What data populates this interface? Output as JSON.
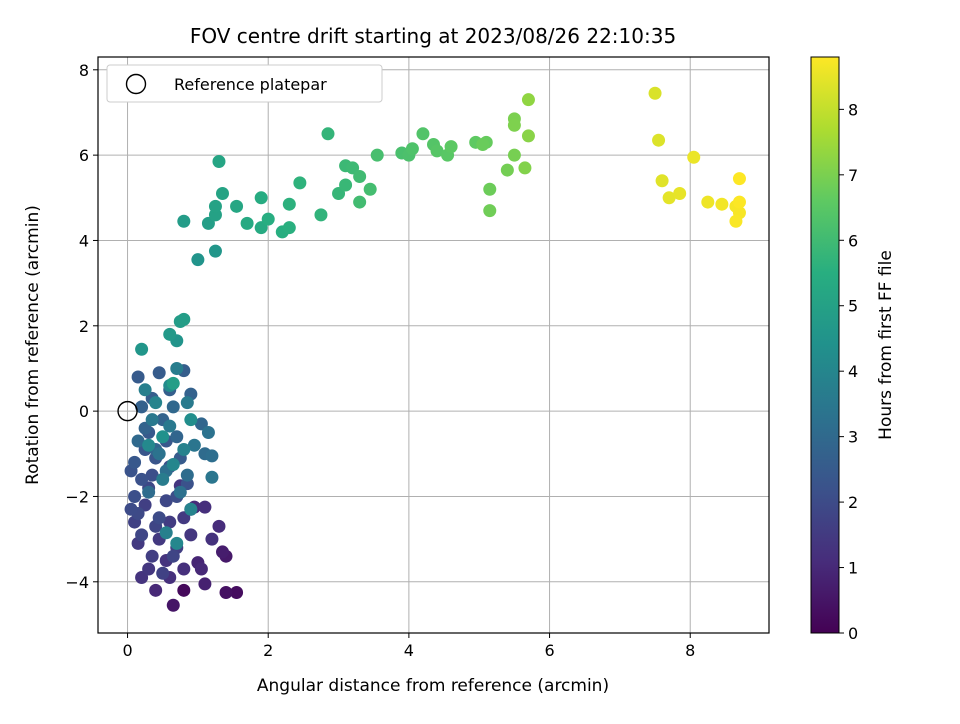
{
  "chart_data": {
    "type": "scatter",
    "title": "FOV centre drift starting at 2023/08/26 22:10:35",
    "xlabel": "Angular distance from reference (arcmin)",
    "ylabel": "Rotation from reference (arcmin)",
    "xlim": [
      -0.42,
      9.12
    ],
    "ylim": [
      -5.2,
      8.3
    ],
    "xticks": [
      "0",
      "2",
      "4",
      "6",
      "8"
    ],
    "yticks": [
      "−4",
      "−2",
      "0",
      "2",
      "4",
      "6",
      "8"
    ],
    "grid": true,
    "legend": {
      "placement": "top-left",
      "entries": [
        "Reference platepar"
      ]
    },
    "reference_point": {
      "x": 0,
      "y": 0
    },
    "colorbar": {
      "label": "Hours from first FF file",
      "range": [
        0,
        8.8
      ],
      "ticks": [
        "0",
        "1",
        "2",
        "3",
        "4",
        "5",
        "6",
        "7",
        "8"
      ],
      "colormap": "viridis"
    },
    "points": [
      {
        "x": 0.8,
        "y": -4.2,
        "t": 0.2
      },
      {
        "x": 1.55,
        "y": -4.25,
        "t": 0.3
      },
      {
        "x": 1.4,
        "y": -4.25,
        "t": 0.4
      },
      {
        "x": 0.65,
        "y": -4.55,
        "t": 0.5
      },
      {
        "x": 1.4,
        "y": -3.4,
        "t": 0.6
      },
      {
        "x": 1.35,
        "y": -3.3,
        "t": 0.7
      },
      {
        "x": 1.1,
        "y": -4.05,
        "t": 0.8
      },
      {
        "x": 1.0,
        "y": -3.55,
        "t": 0.9
      },
      {
        "x": 0.4,
        "y": -4.2,
        "t": 1.0
      },
      {
        "x": 1.05,
        "y": -3.7,
        "t": 1.0
      },
      {
        "x": 0.95,
        "y": -2.25,
        "t": 1.05
      },
      {
        "x": 1.3,
        "y": -2.7,
        "t": 1.1
      },
      {
        "x": 1.1,
        "y": -2.25,
        "t": 1.15
      },
      {
        "x": 0.8,
        "y": -3.7,
        "t": 1.2
      },
      {
        "x": 0.6,
        "y": -3.9,
        "t": 1.2
      },
      {
        "x": 1.2,
        "y": -3.0,
        "t": 1.25
      },
      {
        "x": 0.55,
        "y": -3.5,
        "t": 1.3
      },
      {
        "x": 0.2,
        "y": -3.9,
        "t": 1.3
      },
      {
        "x": 0.75,
        "y": -1.75,
        "t": 1.35
      },
      {
        "x": 0.9,
        "y": -2.9,
        "t": 1.4
      },
      {
        "x": 0.3,
        "y": -3.7,
        "t": 1.4
      },
      {
        "x": 0.45,
        "y": -3.0,
        "t": 1.45
      },
      {
        "x": 0.8,
        "y": -2.5,
        "t": 1.5
      },
      {
        "x": 0.15,
        "y": -3.1,
        "t": 1.5
      },
      {
        "x": 0.6,
        "y": -2.6,
        "t": 1.55
      },
      {
        "x": 0.35,
        "y": -3.4,
        "t": 1.6
      },
      {
        "x": 0.7,
        "y": -3.2,
        "t": 1.6
      },
      {
        "x": 0.25,
        "y": -2.2,
        "t": 1.65
      },
      {
        "x": 0.5,
        "y": -3.8,
        "t": 1.7
      },
      {
        "x": 0.1,
        "y": -2.6,
        "t": 1.7
      },
      {
        "x": 0.9,
        "y": -2.3,
        "t": 1.75
      },
      {
        "x": 0.4,
        "y": -2.7,
        "t": 1.8
      },
      {
        "x": 0.65,
        "y": -3.4,
        "t": 1.8
      },
      {
        "x": 0.2,
        "y": -2.9,
        "t": 1.85
      },
      {
        "x": 0.55,
        "y": -2.1,
        "t": 1.9
      },
      {
        "x": 0.3,
        "y": -1.8,
        "t": 1.9
      },
      {
        "x": 0.15,
        "y": -2.4,
        "t": 1.95
      },
      {
        "x": 0.05,
        "y": -2.3,
        "t": 2.0
      },
      {
        "x": 0.45,
        "y": -2.5,
        "t": 2.0
      },
      {
        "x": 0.7,
        "y": -2.0,
        "t": 2.05
      },
      {
        "x": 0.1,
        "y": -2.0,
        "t": 2.1
      },
      {
        "x": 0.35,
        "y": -1.5,
        "t": 2.1
      },
      {
        "x": 0.6,
        "y": -1.3,
        "t": 2.15
      },
      {
        "x": 0.2,
        "y": -1.6,
        "t": 2.2
      },
      {
        "x": 0.85,
        "y": -1.7,
        "t": 2.2
      },
      {
        "x": 0.05,
        "y": -1.4,
        "t": 2.25
      },
      {
        "x": 0.4,
        "y": -1.1,
        "t": 2.3
      },
      {
        "x": 0.25,
        "y": -0.9,
        "t": 2.35
      },
      {
        "x": 0.55,
        "y": -0.7,
        "t": 2.4
      },
      {
        "x": 0.1,
        "y": -1.2,
        "t": 2.4
      },
      {
        "x": 0.3,
        "y": -0.5,
        "t": 2.45
      },
      {
        "x": 0.75,
        "y": -1.1,
        "t": 2.5
      },
      {
        "x": 0.15,
        "y": 0.8,
        "t": 2.5
      },
      {
        "x": 0.45,
        "y": 0.9,
        "t": 2.55
      },
      {
        "x": 0.8,
        "y": 0.95,
        "t": 2.6
      },
      {
        "x": 0.35,
        "y": 0.3,
        "t": 2.6
      },
      {
        "x": 0.6,
        "y": 0.5,
        "t": 2.65
      },
      {
        "x": 0.2,
        "y": 0.1,
        "t": 2.7
      },
      {
        "x": 0.9,
        "y": 0.4,
        "t": 2.75
      },
      {
        "x": 0.5,
        "y": -0.2,
        "t": 2.8
      },
      {
        "x": 0.25,
        "y": -0.4,
        "t": 2.8
      },
      {
        "x": 0.7,
        "y": -0.6,
        "t": 2.85
      },
      {
        "x": 1.05,
        "y": -0.3,
        "t": 2.9
      },
      {
        "x": 0.4,
        "y": -0.9,
        "t": 2.9
      },
      {
        "x": 0.65,
        "y": 0.1,
        "t": 2.95
      },
      {
        "x": 0.15,
        "y": -0.7,
        "t": 3.0
      },
      {
        "x": 1.1,
        "y": -1.0,
        "t": 3.05
      },
      {
        "x": 0.85,
        "y": -1.5,
        "t": 3.1
      },
      {
        "x": 0.3,
        "y": -1.9,
        "t": 3.1
      },
      {
        "x": 1.2,
        "y": -1.05,
        "t": 3.15
      },
      {
        "x": 0.55,
        "y": -1.4,
        "t": 3.2
      },
      {
        "x": 0.75,
        "y": -1.9,
        "t": 3.25
      },
      {
        "x": 1.15,
        "y": -0.5,
        "t": 3.3
      },
      {
        "x": 0.45,
        "y": -1.0,
        "t": 3.35
      },
      {
        "x": 0.95,
        "y": -0.8,
        "t": 3.4
      },
      {
        "x": 1.2,
        "y": -1.55,
        "t": 3.45
      },
      {
        "x": 0.35,
        "y": -0.2,
        "t": 3.5
      },
      {
        "x": 0.6,
        "y": -0.35,
        "t": 3.55
      },
      {
        "x": 0.85,
        "y": 0.2,
        "t": 3.6
      },
      {
        "x": 0.5,
        "y": -1.6,
        "t": 3.65
      },
      {
        "x": 0.7,
        "y": 1.0,
        "t": 3.7
      },
      {
        "x": 0.25,
        "y": 0.5,
        "t": 3.75
      },
      {
        "x": 0.55,
        "y": -2.85,
        "t": 3.8
      },
      {
        "x": 0.8,
        "y": -0.9,
        "t": 3.85
      },
      {
        "x": 0.9,
        "y": -2.3,
        "t": 3.9
      },
      {
        "x": 0.4,
        "y": 0.2,
        "t": 3.95
      },
      {
        "x": 0.65,
        "y": -1.25,
        "t": 4.0
      },
      {
        "x": 0.7,
        "y": -3.1,
        "t": 4.05
      },
      {
        "x": 0.3,
        "y": -0.8,
        "t": 4.1
      },
      {
        "x": 0.6,
        "y": 0.6,
        "t": 4.2
      },
      {
        "x": 0.9,
        "y": -0.2,
        "t": 4.3
      },
      {
        "x": 0.5,
        "y": -0.6,
        "t": 4.4
      },
      {
        "x": 0.7,
        "y": 1.65,
        "t": 4.5
      },
      {
        "x": 0.2,
        "y": 1.45,
        "t": 4.6
      },
      {
        "x": 0.6,
        "y": 1.8,
        "t": 4.7
      },
      {
        "x": 0.75,
        "y": 2.1,
        "t": 4.8
      },
      {
        "x": 0.8,
        "y": 2.15,
        "t": 4.85
      },
      {
        "x": 0.65,
        "y": 0.65,
        "t": 4.9
      },
      {
        "x": 1.0,
        "y": 3.55,
        "t": 4.5
      },
      {
        "x": 1.25,
        "y": 3.75,
        "t": 4.6
      },
      {
        "x": 0.8,
        "y": 4.45,
        "t": 4.8
      },
      {
        "x": 1.15,
        "y": 4.4,
        "t": 4.9
      },
      {
        "x": 1.25,
        "y": 4.6,
        "t": 5.0
      },
      {
        "x": 1.25,
        "y": 4.8,
        "t": 5.05
      },
      {
        "x": 1.35,
        "y": 5.1,
        "t": 5.1
      },
      {
        "x": 1.3,
        "y": 5.85,
        "t": 5.15
      },
      {
        "x": 1.55,
        "y": 4.8,
        "t": 5.2
      },
      {
        "x": 1.7,
        "y": 4.4,
        "t": 5.3
      },
      {
        "x": 1.9,
        "y": 4.3,
        "t": 5.35
      },
      {
        "x": 1.9,
        "y": 5.0,
        "t": 5.4
      },
      {
        "x": 2.0,
        "y": 4.5,
        "t": 5.45
      },
      {
        "x": 2.2,
        "y": 4.2,
        "t": 5.5
      },
      {
        "x": 2.3,
        "y": 4.3,
        "t": 5.55
      },
      {
        "x": 2.3,
        "y": 4.85,
        "t": 5.6
      },
      {
        "x": 2.45,
        "y": 5.35,
        "t": 5.65
      },
      {
        "x": 2.75,
        "y": 4.6,
        "t": 5.7
      },
      {
        "x": 2.85,
        "y": 6.5,
        "t": 5.75
      },
      {
        "x": 3.0,
        "y": 5.1,
        "t": 5.8
      },
      {
        "x": 3.1,
        "y": 5.3,
        "t": 5.85
      },
      {
        "x": 3.1,
        "y": 5.75,
        "t": 5.9
      },
      {
        "x": 3.2,
        "y": 5.7,
        "t": 5.95
      },
      {
        "x": 3.3,
        "y": 5.5,
        "t": 6.0
      },
      {
        "x": 3.3,
        "y": 4.9,
        "t": 6.05
      },
      {
        "x": 3.45,
        "y": 5.2,
        "t": 6.1
      },
      {
        "x": 3.55,
        "y": 6.0,
        "t": 6.15
      },
      {
        "x": 3.9,
        "y": 6.05,
        "t": 6.2
      },
      {
        "x": 4.0,
        "y": 6.0,
        "t": 6.25
      },
      {
        "x": 4.05,
        "y": 6.15,
        "t": 6.3
      },
      {
        "x": 4.2,
        "y": 6.5,
        "t": 6.35
      },
      {
        "x": 4.35,
        "y": 6.25,
        "t": 6.4
      },
      {
        "x": 4.4,
        "y": 6.1,
        "t": 6.45
      },
      {
        "x": 4.55,
        "y": 6.0,
        "t": 6.5
      },
      {
        "x": 4.6,
        "y": 6.2,
        "t": 6.55
      },
      {
        "x": 4.95,
        "y": 6.3,
        "t": 6.6
      },
      {
        "x": 5.1,
        "y": 6.3,
        "t": 6.7
      },
      {
        "x": 5.05,
        "y": 6.25,
        "t": 6.75
      },
      {
        "x": 5.15,
        "y": 5.2,
        "t": 6.8
      },
      {
        "x": 5.15,
        "y": 4.7,
        "t": 6.85
      },
      {
        "x": 5.4,
        "y": 5.65,
        "t": 6.9
      },
      {
        "x": 5.5,
        "y": 6.0,
        "t": 6.95
      },
      {
        "x": 5.5,
        "y": 6.85,
        "t": 7.0
      },
      {
        "x": 5.5,
        "y": 6.7,
        "t": 7.05
      },
      {
        "x": 5.65,
        "y": 5.7,
        "t": 7.1
      },
      {
        "x": 5.7,
        "y": 6.45,
        "t": 7.2
      },
      {
        "x": 5.7,
        "y": 7.3,
        "t": 7.3
      },
      {
        "x": 7.5,
        "y": 7.45,
        "t": 8.3
      },
      {
        "x": 7.55,
        "y": 6.35,
        "t": 8.35
      },
      {
        "x": 7.6,
        "y": 5.4,
        "t": 8.4
      },
      {
        "x": 7.7,
        "y": 5.0,
        "t": 8.45
      },
      {
        "x": 7.85,
        "y": 5.1,
        "t": 8.5
      },
      {
        "x": 8.05,
        "y": 5.95,
        "t": 8.55
      },
      {
        "x": 8.25,
        "y": 4.9,
        "t": 8.6
      },
      {
        "x": 8.45,
        "y": 4.85,
        "t": 8.65
      },
      {
        "x": 8.65,
        "y": 4.8,
        "t": 8.7
      },
      {
        "x": 8.7,
        "y": 4.65,
        "t": 8.72
      },
      {
        "x": 8.65,
        "y": 4.45,
        "t": 8.75
      },
      {
        "x": 8.7,
        "y": 4.9,
        "t": 8.78
      },
      {
        "x": 8.7,
        "y": 5.45,
        "t": 8.8
      }
    ]
  }
}
